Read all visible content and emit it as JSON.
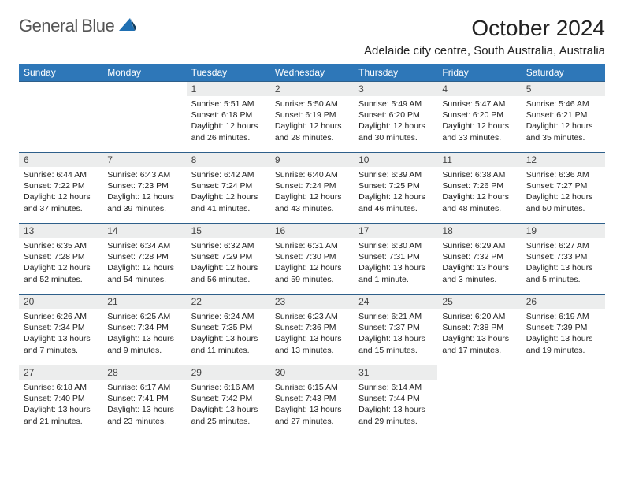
{
  "brand": {
    "text1": "General",
    "text2": "Blue",
    "logo_fill": "#1f6fb2"
  },
  "header": {
    "title": "October 2024",
    "subtitle": "Adelaide city centre, South Australia, Australia"
  },
  "colors": {
    "header_bg": "#2e77b8",
    "header_text": "#ffffff",
    "row_sep": "#2e5f8a",
    "daynum_bg": "#eceded"
  },
  "dayNames": [
    "Sunday",
    "Monday",
    "Tuesday",
    "Wednesday",
    "Thursday",
    "Friday",
    "Saturday"
  ],
  "weeks": [
    [
      null,
      null,
      {
        "n": "1",
        "sunrise": "Sunrise: 5:51 AM",
        "sunset": "Sunset: 6:18 PM",
        "d1": "Daylight: 12 hours",
        "d2": "and 26 minutes."
      },
      {
        "n": "2",
        "sunrise": "Sunrise: 5:50 AM",
        "sunset": "Sunset: 6:19 PM",
        "d1": "Daylight: 12 hours",
        "d2": "and 28 minutes."
      },
      {
        "n": "3",
        "sunrise": "Sunrise: 5:49 AM",
        "sunset": "Sunset: 6:20 PM",
        "d1": "Daylight: 12 hours",
        "d2": "and 30 minutes."
      },
      {
        "n": "4",
        "sunrise": "Sunrise: 5:47 AM",
        "sunset": "Sunset: 6:20 PM",
        "d1": "Daylight: 12 hours",
        "d2": "and 33 minutes."
      },
      {
        "n": "5",
        "sunrise": "Sunrise: 5:46 AM",
        "sunset": "Sunset: 6:21 PM",
        "d1": "Daylight: 12 hours",
        "d2": "and 35 minutes."
      }
    ],
    [
      {
        "n": "6",
        "sunrise": "Sunrise: 6:44 AM",
        "sunset": "Sunset: 7:22 PM",
        "d1": "Daylight: 12 hours",
        "d2": "and 37 minutes."
      },
      {
        "n": "7",
        "sunrise": "Sunrise: 6:43 AM",
        "sunset": "Sunset: 7:23 PM",
        "d1": "Daylight: 12 hours",
        "d2": "and 39 minutes."
      },
      {
        "n": "8",
        "sunrise": "Sunrise: 6:42 AM",
        "sunset": "Sunset: 7:24 PM",
        "d1": "Daylight: 12 hours",
        "d2": "and 41 minutes."
      },
      {
        "n": "9",
        "sunrise": "Sunrise: 6:40 AM",
        "sunset": "Sunset: 7:24 PM",
        "d1": "Daylight: 12 hours",
        "d2": "and 43 minutes."
      },
      {
        "n": "10",
        "sunrise": "Sunrise: 6:39 AM",
        "sunset": "Sunset: 7:25 PM",
        "d1": "Daylight: 12 hours",
        "d2": "and 46 minutes."
      },
      {
        "n": "11",
        "sunrise": "Sunrise: 6:38 AM",
        "sunset": "Sunset: 7:26 PM",
        "d1": "Daylight: 12 hours",
        "d2": "and 48 minutes."
      },
      {
        "n": "12",
        "sunrise": "Sunrise: 6:36 AM",
        "sunset": "Sunset: 7:27 PM",
        "d1": "Daylight: 12 hours",
        "d2": "and 50 minutes."
      }
    ],
    [
      {
        "n": "13",
        "sunrise": "Sunrise: 6:35 AM",
        "sunset": "Sunset: 7:28 PM",
        "d1": "Daylight: 12 hours",
        "d2": "and 52 minutes."
      },
      {
        "n": "14",
        "sunrise": "Sunrise: 6:34 AM",
        "sunset": "Sunset: 7:28 PM",
        "d1": "Daylight: 12 hours",
        "d2": "and 54 minutes."
      },
      {
        "n": "15",
        "sunrise": "Sunrise: 6:32 AM",
        "sunset": "Sunset: 7:29 PM",
        "d1": "Daylight: 12 hours",
        "d2": "and 56 minutes."
      },
      {
        "n": "16",
        "sunrise": "Sunrise: 6:31 AM",
        "sunset": "Sunset: 7:30 PM",
        "d1": "Daylight: 12 hours",
        "d2": "and 59 minutes."
      },
      {
        "n": "17",
        "sunrise": "Sunrise: 6:30 AM",
        "sunset": "Sunset: 7:31 PM",
        "d1": "Daylight: 13 hours",
        "d2": "and 1 minute."
      },
      {
        "n": "18",
        "sunrise": "Sunrise: 6:29 AM",
        "sunset": "Sunset: 7:32 PM",
        "d1": "Daylight: 13 hours",
        "d2": "and 3 minutes."
      },
      {
        "n": "19",
        "sunrise": "Sunrise: 6:27 AM",
        "sunset": "Sunset: 7:33 PM",
        "d1": "Daylight: 13 hours",
        "d2": "and 5 minutes."
      }
    ],
    [
      {
        "n": "20",
        "sunrise": "Sunrise: 6:26 AM",
        "sunset": "Sunset: 7:34 PM",
        "d1": "Daylight: 13 hours",
        "d2": "and 7 minutes."
      },
      {
        "n": "21",
        "sunrise": "Sunrise: 6:25 AM",
        "sunset": "Sunset: 7:34 PM",
        "d1": "Daylight: 13 hours",
        "d2": "and 9 minutes."
      },
      {
        "n": "22",
        "sunrise": "Sunrise: 6:24 AM",
        "sunset": "Sunset: 7:35 PM",
        "d1": "Daylight: 13 hours",
        "d2": "and 11 minutes."
      },
      {
        "n": "23",
        "sunrise": "Sunrise: 6:23 AM",
        "sunset": "Sunset: 7:36 PM",
        "d1": "Daylight: 13 hours",
        "d2": "and 13 minutes."
      },
      {
        "n": "24",
        "sunrise": "Sunrise: 6:21 AM",
        "sunset": "Sunset: 7:37 PM",
        "d1": "Daylight: 13 hours",
        "d2": "and 15 minutes."
      },
      {
        "n": "25",
        "sunrise": "Sunrise: 6:20 AM",
        "sunset": "Sunset: 7:38 PM",
        "d1": "Daylight: 13 hours",
        "d2": "and 17 minutes."
      },
      {
        "n": "26",
        "sunrise": "Sunrise: 6:19 AM",
        "sunset": "Sunset: 7:39 PM",
        "d1": "Daylight: 13 hours",
        "d2": "and 19 minutes."
      }
    ],
    [
      {
        "n": "27",
        "sunrise": "Sunrise: 6:18 AM",
        "sunset": "Sunset: 7:40 PM",
        "d1": "Daylight: 13 hours",
        "d2": "and 21 minutes."
      },
      {
        "n": "28",
        "sunrise": "Sunrise: 6:17 AM",
        "sunset": "Sunset: 7:41 PM",
        "d1": "Daylight: 13 hours",
        "d2": "and 23 minutes."
      },
      {
        "n": "29",
        "sunrise": "Sunrise: 6:16 AM",
        "sunset": "Sunset: 7:42 PM",
        "d1": "Daylight: 13 hours",
        "d2": "and 25 minutes."
      },
      {
        "n": "30",
        "sunrise": "Sunrise: 6:15 AM",
        "sunset": "Sunset: 7:43 PM",
        "d1": "Daylight: 13 hours",
        "d2": "and 27 minutes."
      },
      {
        "n": "31",
        "sunrise": "Sunrise: 6:14 AM",
        "sunset": "Sunset: 7:44 PM",
        "d1": "Daylight: 13 hours",
        "d2": "and 29 minutes."
      },
      null,
      null
    ]
  ]
}
